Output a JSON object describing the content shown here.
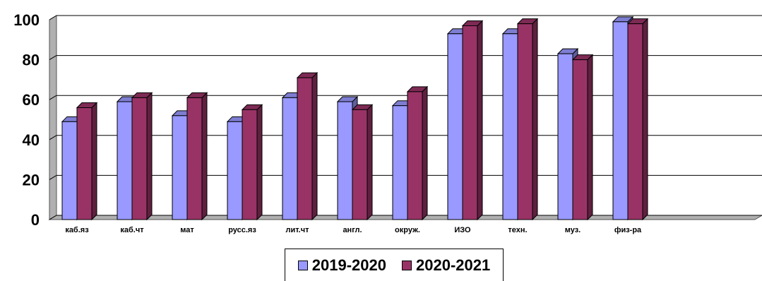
{
  "chart_data": {
    "type": "bar",
    "categories": [
      "каб.яз",
      "каб.чт",
      "мат",
      "русс.яз",
      "лит.чт",
      "англ.",
      "окруж.",
      "ИЗО",
      "техн.",
      "муз.",
      "физ-ра"
    ],
    "series": [
      {
        "name": "2019-2020",
        "values": [
          49,
          59,
          52,
          49,
          61,
          59,
          57,
          93,
          93,
          83,
          99
        ],
        "color": "#9999ff"
      },
      {
        "name": "2020-2021",
        "values": [
          56,
          61,
          61,
          55,
          71,
          55,
          64,
          97,
          98,
          80,
          98
        ],
        "color": "#993366"
      }
    ],
    "yticks": [
      "0",
      "20",
      "40",
      "60",
      "80",
      "100"
    ],
    "ylim": [
      0,
      100
    ],
    "grid": true,
    "legend_position": "bottom",
    "three_d": true
  }
}
